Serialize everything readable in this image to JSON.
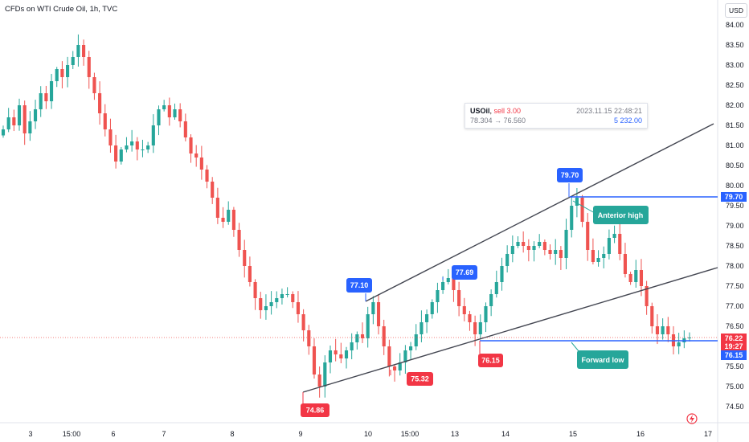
{
  "header": {
    "title": "CFDs on WTI Crude Oil, 1h, TVC",
    "currency": "USD"
  },
  "info_box": {
    "symbol": "USOil",
    "side": "sell 3.00",
    "timestamp": "2023.11.15 22:48:21",
    "prices": "78.304 → 76.560",
    "volume": "5 232.00"
  },
  "chart_data": {
    "type": "candlestick",
    "y_axis": {
      "min": 74.5,
      "max": 84.0,
      "ticks": [
        "84.00",
        "83.50",
        "83.00",
        "82.50",
        "82.00",
        "81.50",
        "81.00",
        "80.50",
        "80.00",
        "79.50",
        "79.00",
        "78.50",
        "78.00",
        "77.50",
        "77.00",
        "76.50",
        "76.00",
        "75.50",
        "75.00",
        "74.50"
      ]
    },
    "x_axis": {
      "ticks": [
        "3",
        "15:00",
        "6",
        "7",
        "8",
        "9",
        "10",
        "15:00",
        "13",
        "14",
        "15",
        "16",
        "17"
      ]
    },
    "price_labels": {
      "current": "76.22",
      "countdown": "19:27",
      "level_high": "79.70",
      "level_low": "76.15"
    },
    "annotations": {
      "low_1": "74.86",
      "high_1": "77.10",
      "low_2": "75.32",
      "high_2": "77.69",
      "low_3": "76.15",
      "high_3": "79.70",
      "callout_high": "Anterior high",
      "callout_low": "Forward low"
    },
    "colors": {
      "up": "#26a69a",
      "down": "#ef5350",
      "trendline": "#434651",
      "level": "#2962ff",
      "callout": "#26a69a",
      "label_blue": "#2962ff",
      "label_red": "#f23645"
    },
    "closes": [
      81.4,
      81.7,
      81.5,
      82.0,
      81.3,
      81.6,
      81.9,
      82.3,
      82.1,
      82.6,
      82.9,
      82.7,
      83.0,
      83.2,
      83.5,
      83.2,
      82.7,
      82.3,
      81.8,
      81.4,
      81.0,
      80.6,
      80.9,
      81.0,
      81.1,
      80.9,
      80.9,
      81.0,
      81.5,
      81.9,
      82.0,
      81.7,
      81.9,
      81.6,
      81.2,
      80.8,
      80.7,
      80.4,
      80.1,
      79.7,
      79.2,
      79.1,
      79.4,
      78.9,
      78.4,
      78.0,
      77.6,
      77.2,
      76.9,
      77.0,
      77.1,
      77.2,
      77.3,
      77.3,
      77.1,
      76.8,
      76.4,
      76.0,
      75.3,
      75.0,
      75.6,
      75.9,
      75.8,
      75.7,
      75.9,
      76.1,
      76.3,
      76.2,
      76.8,
      77.1,
      76.5,
      76.0,
      75.5,
      75.4,
      75.6,
      75.9,
      76.0,
      76.3,
      76.6,
      76.8,
      77.1,
      77.4,
      77.6,
      77.7,
      77.4,
      77.0,
      76.8,
      76.6,
      76.3,
      76.6,
      77.0,
      77.3,
      77.6,
      78.0,
      78.3,
      78.5,
      78.6,
      78.5,
      78.4,
      78.5,
      78.6,
      78.4,
      78.3,
      78.4,
      78.2,
      78.9,
      79.5,
      79.7,
      79.1,
      78.4,
      78.1,
      78.2,
      78.3,
      78.7,
      78.8,
      78.3,
      77.8,
      77.6,
      77.9,
      77.5,
      77.0,
      76.5,
      76.3,
      76.5,
      76.3,
      76.0,
      76.1,
      76.2,
      76.22
    ]
  }
}
